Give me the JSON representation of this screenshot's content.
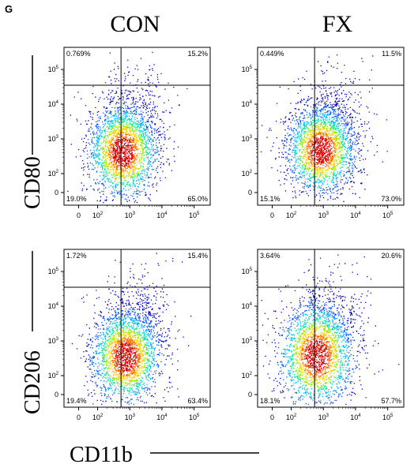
{
  "figure": {
    "panel_letter": "G",
    "col_titles": [
      "CON",
      "FX"
    ],
    "row_labels": [
      "CD80",
      "CD206"
    ],
    "x_label": "CD11b"
  },
  "colors": {
    "density_scale": [
      "#0000c8",
      "#0050ff",
      "#00b4ff",
      "#00e8a0",
      "#9be800",
      "#ffd000",
      "#ff6a00",
      "#e00000"
    ]
  },
  "chart_data": [
    {
      "type": "scatter",
      "row": "CD80",
      "column": "CON",
      "xlabel": "CD11b",
      "ylabel": "CD80",
      "x_ticks": [
        "0",
        "10",
        "10",
        "10",
        "10"
      ],
      "x_tick_exp": [
        "",
        "2",
        "3",
        "4",
        "5"
      ],
      "y_ticks": [
        "0",
        "10",
        "10",
        "10",
        "10"
      ],
      "y_tick_exp": [
        "",
        "2",
        "3",
        "4",
        "5"
      ],
      "quadrants": {
        "upper_left": "0.769%",
        "upper_right": "15.2%",
        "lower_left": "19.0%",
        "lower_right": "65.0%"
      },
      "gate": {
        "x": 0.39,
        "y": 0.76
      },
      "density_center": {
        "x": 0.4,
        "y": 0.34
      },
      "spread": {
        "x": 0.12,
        "y": 0.15
      }
    },
    {
      "type": "scatter",
      "row": "CD80",
      "column": "FX",
      "xlabel": "CD11b",
      "ylabel": "CD80",
      "x_ticks": [
        "0",
        "10",
        "10",
        "10",
        "10"
      ],
      "x_tick_exp": [
        "",
        "2",
        "3",
        "4",
        "5"
      ],
      "y_ticks": [
        "0",
        "10",
        "10",
        "10",
        "10"
      ],
      "y_tick_exp": [
        "",
        "2",
        "3",
        "4",
        "5"
      ],
      "quadrants": {
        "upper_left": "0.449%",
        "upper_right": "11.5%",
        "lower_left": "15.1%",
        "lower_right": "73.0%"
      },
      "gate": {
        "x": 0.39,
        "y": 0.76
      },
      "density_center": {
        "x": 0.43,
        "y": 0.35
      },
      "spread": {
        "x": 0.12,
        "y": 0.14
      }
    },
    {
      "type": "scatter",
      "row": "CD206",
      "column": "CON",
      "xlabel": "CD11b",
      "ylabel": "CD206",
      "x_ticks": [
        "0",
        "10",
        "10",
        "10",
        "10"
      ],
      "x_tick_exp": [
        "",
        "2",
        "3",
        "4",
        "5"
      ],
      "y_ticks": [
        "0",
        "10",
        "10",
        "10",
        "10"
      ],
      "y_tick_exp": [
        "",
        "2",
        "3",
        "4",
        "5"
      ],
      "quadrants": {
        "upper_left": "1.72%",
        "upper_right": "15.4%",
        "lower_left": "19.4%",
        "lower_right": "63.4%"
      },
      "gate": {
        "x": 0.39,
        "y": 0.76
      },
      "density_center": {
        "x": 0.42,
        "y": 0.32
      },
      "spread": {
        "x": 0.12,
        "y": 0.15
      }
    },
    {
      "type": "scatter",
      "row": "CD206",
      "column": "FX",
      "xlabel": "CD11b",
      "ylabel": "CD206",
      "x_ticks": [
        "0",
        "10",
        "10",
        "10",
        "10"
      ],
      "x_tick_exp": [
        "",
        "2",
        "3",
        "4",
        "5"
      ],
      "y_ticks": [
        "0",
        "10",
        "10",
        "10",
        "10"
      ],
      "y_tick_exp": [
        "",
        "2",
        "3",
        "4",
        "5"
      ],
      "quadrants": {
        "upper_left": "3.64%",
        "upper_right": "20.6%",
        "lower_left": "18.1%",
        "lower_right": "57.7%"
      },
      "gate": {
        "x": 0.39,
        "y": 0.76
      },
      "density_center": {
        "x": 0.4,
        "y": 0.33
      },
      "spread": {
        "x": 0.13,
        "y": 0.17
      }
    }
  ]
}
